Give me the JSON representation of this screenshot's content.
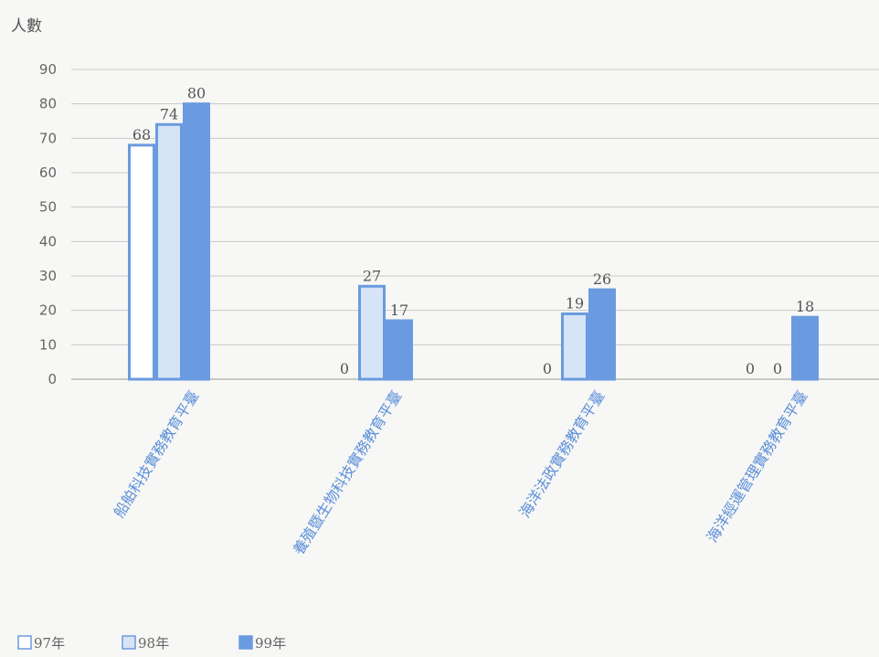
{
  "chart_data": {
    "type": "bar",
    "ylabel": "人數",
    "ylim": [
      0,
      90
    ],
    "yticks": [
      0,
      10,
      20,
      30,
      40,
      50,
      60,
      70,
      80,
      90
    ],
    "grid": true,
    "legend_position": "bottom-left",
    "categories": [
      "船舶科技實務教育平臺",
      "養殖暨生物科技實務教育平臺",
      "海洋法政實務教育平臺",
      "海洋經運管理實務教育平臺"
    ],
    "series": [
      {
        "name": "97年",
        "values": [
          68,
          0,
          0,
          0
        ],
        "color": "#ffffff",
        "stroke": "#6a9be0"
      },
      {
        "name": "98年",
        "values": [
          74,
          27,
          19,
          0
        ],
        "color": "#d6e4f5",
        "stroke": "#6a9be0"
      },
      {
        "name": "99年",
        "values": [
          80,
          17,
          26,
          18
        ],
        "color": "#6a9be0",
        "stroke": "#6a9be0"
      }
    ],
    "data_labels": [
      [
        "68",
        "74",
        "80"
      ],
      [
        "0",
        "27",
        "17"
      ],
      [
        "0",
        "19",
        "26"
      ],
      [
        "0",
        "0",
        "18"
      ]
    ]
  }
}
